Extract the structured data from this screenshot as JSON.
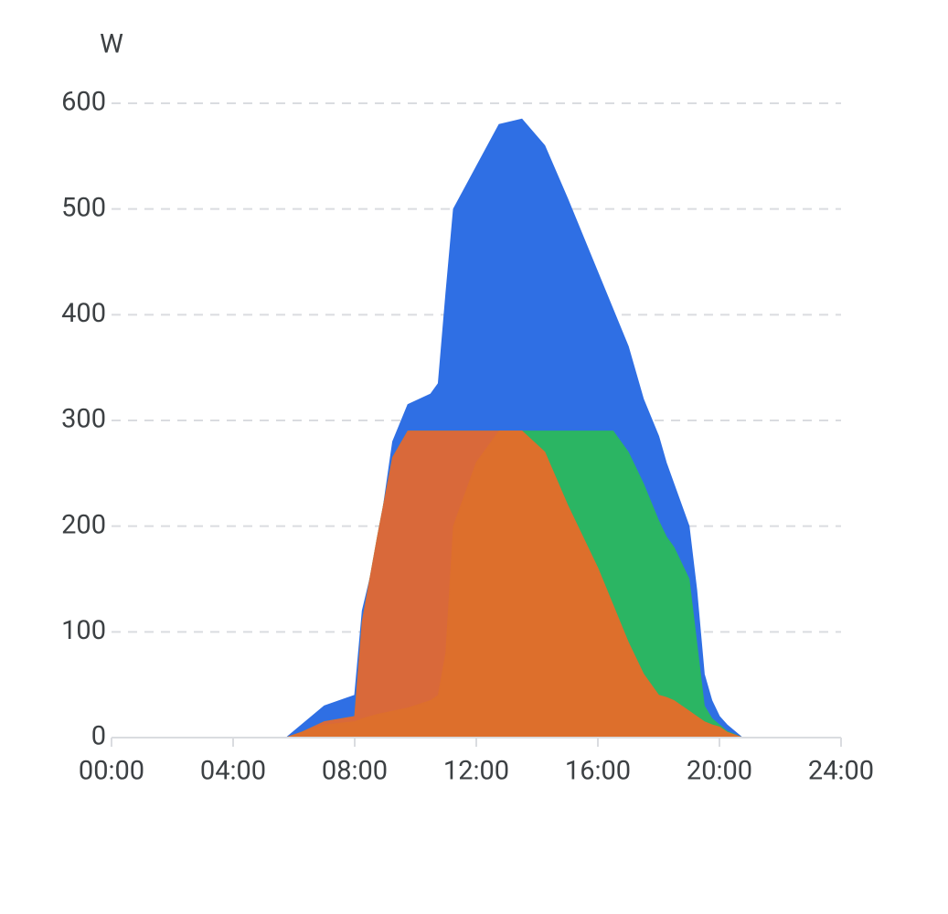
{
  "chart_data": {
    "type": "area",
    "ylabel": "W",
    "x": [
      5.75,
      6.25,
      7,
      8,
      8.25,
      8.75,
      9.25,
      9.75,
      10.5,
      10.75,
      11,
      11.25,
      12,
      12.75,
      13.5,
      14.25,
      15,
      16,
      16.5,
      17,
      17.5,
      18,
      18.25,
      18.5,
      19,
      19.25,
      19.5,
      19.75,
      20,
      20.25,
      20.75
    ],
    "series": [
      {
        "color": "#2f6fe4",
        "values": [
          0,
          12,
          30,
          40,
          120,
          180,
          280,
          315,
          325,
          335,
          420,
          500,
          540,
          580,
          585,
          560,
          510,
          440,
          405,
          370,
          320,
          285,
          260,
          240,
          200,
          140,
          60,
          35,
          20,
          12,
          0
        ]
      },
      {
        "color": "#2bb563",
        "values": [
          0,
          5,
          15,
          20,
          110,
          190,
          265,
          290,
          290,
          290,
          290,
          290,
          290,
          290,
          290,
          290,
          290,
          290,
          290,
          270,
          240,
          205,
          190,
          180,
          150,
          90,
          30,
          18,
          12,
          6,
          0
        ]
      },
      {
        "color": "#d9693a",
        "values": [
          0,
          5,
          15,
          20,
          110,
          190,
          265,
          290,
          290,
          290,
          290,
          290,
          290,
          290,
          290,
          270,
          220,
          160,
          125,
          90,
          60,
          40,
          38,
          35,
          25,
          20,
          15,
          12,
          10,
          5,
          0
        ]
      },
      {
        "color": "#dd6f2c",
        "values": [
          0,
          5,
          12,
          15,
          18,
          22,
          25,
          28,
          35,
          40,
          80,
          200,
          260,
          290,
          290,
          270,
          220,
          160,
          125,
          90,
          60,
          40,
          38,
          35,
          25,
          20,
          15,
          12,
          10,
          5,
          0
        ]
      }
    ],
    "xlim": [
      0,
      24
    ],
    "xticks": [
      {
        "value": 0,
        "label": "00:00"
      },
      {
        "value": 4,
        "label": "04:00"
      },
      {
        "value": 8,
        "label": "08:00"
      },
      {
        "value": 12,
        "label": "12:00"
      },
      {
        "value": 16,
        "label": "16:00"
      },
      {
        "value": 20,
        "label": "20:00"
      },
      {
        "value": 24,
        "label": "24:00"
      }
    ],
    "ylim": [
      0,
      600
    ],
    "yticks": [
      0,
      100,
      200,
      300,
      400,
      500,
      600
    ],
    "grid": true
  }
}
